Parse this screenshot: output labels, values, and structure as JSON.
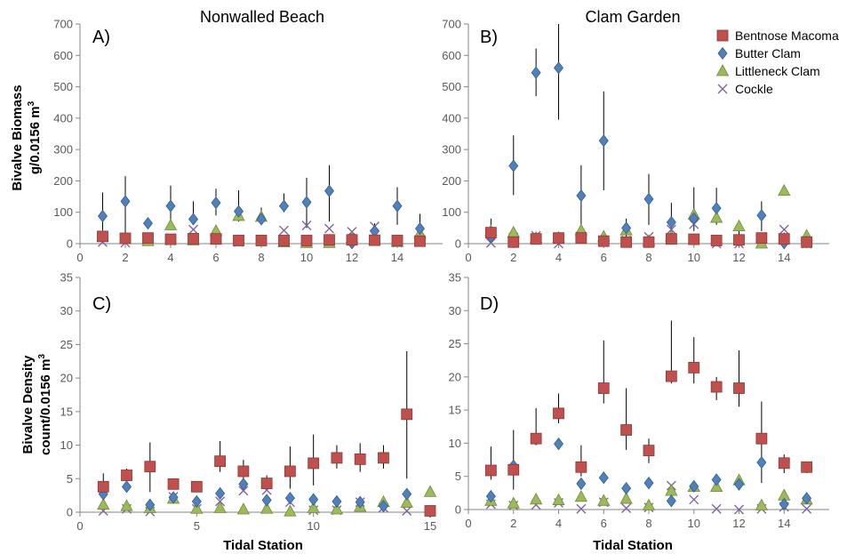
{
  "figure": {
    "xlabel": "Tidal Station",
    "ylabel_top_line1": "Bivalve Biomass",
    "ylabel_top_line2": "g/0.0156 m",
    "ylabel_bottom_line1": "Bivalve Density",
    "ylabel_bottom_line2": "count/0.0156 m",
    "unit_superscript": "3"
  },
  "legend": {
    "placement": "top-right",
    "entries": [
      {
        "name": "Bentnose Macoma",
        "marker": "square",
        "color": "#c0504d"
      },
      {
        "name": "Butter Clam",
        "marker": "diamond",
        "color": "#4f81bd"
      },
      {
        "name": "Littleneck Clam",
        "marker": "triangle",
        "color": "#9bbb59"
      },
      {
        "name": "Cockle",
        "marker": "x",
        "color": "#8064a2"
      }
    ]
  },
  "chart_data": [
    {
      "id": "A",
      "panel_label": "A)",
      "title": "Nonwalled Beach",
      "type": "scatter",
      "error_bars": true,
      "xlim": [
        0,
        16
      ],
      "xticks": [
        0,
        2,
        4,
        6,
        8,
        10,
        12,
        14
      ],
      "ylim": [
        0,
        700
      ],
      "yticks": [
        0,
        100,
        200,
        300,
        400,
        500,
        600,
        700
      ],
      "series": [
        {
          "name": "Bentnose Macoma",
          "x": [
            1,
            2,
            3,
            4,
            5,
            6,
            7,
            8,
            9,
            10,
            11,
            12,
            13,
            14,
            15
          ],
          "y": [
            23,
            17,
            18,
            14,
            16,
            15,
            10,
            10,
            10,
            10,
            12,
            12,
            11,
            10,
            8
          ]
        },
        {
          "name": "Butter Clam",
          "x": [
            1,
            2,
            3,
            4,
            5,
            6,
            7,
            8,
            9,
            10,
            11,
            12,
            13,
            14,
            15
          ],
          "y": [
            88,
            135,
            65,
            120,
            78,
            130,
            103,
            78,
            120,
            132,
            168,
            2,
            40,
            120,
            48
          ],
          "err_low": [
            20,
            30,
            55,
            68,
            60,
            90,
            70,
            60,
            100,
            50,
            70,
            0,
            30,
            60,
            30
          ],
          "err_high": [
            163,
            215,
            75,
            185,
            135,
            175,
            170,
            115,
            160,
            210,
            250,
            10,
            65,
            180,
            95
          ]
        },
        {
          "name": "Littleneck Clam",
          "x": [
            1,
            2,
            3,
            4,
            5,
            6,
            7,
            8,
            9,
            10,
            11,
            12,
            13,
            14,
            15
          ],
          "y": [
            22,
            14,
            8,
            58,
            10,
            40,
            88,
            85,
            4,
            2,
            2,
            18,
            12,
            5,
            32
          ]
        },
        {
          "name": "Cockle",
          "x": [
            1,
            2,
            3,
            4,
            5,
            6,
            7,
            8,
            9,
            10,
            11,
            12,
            13,
            14,
            15
          ],
          "y": [
            5,
            3,
            12,
            10,
            45,
            15,
            5,
            8,
            42,
            58,
            48,
            38,
            55,
            3,
            5
          ]
        }
      ]
    },
    {
      "id": "B",
      "panel_label": "B)",
      "title": "Clam Garden",
      "type": "scatter",
      "error_bars": true,
      "xlim": [
        0,
        16
      ],
      "xticks": [
        0,
        2,
        4,
        6,
        8,
        10,
        12,
        14
      ],
      "ylim": [
        0,
        700
      ],
      "yticks": [
        0,
        100,
        200,
        300,
        400,
        500,
        600,
        700
      ],
      "series": [
        {
          "name": "Bentnose Macoma",
          "x": [
            1,
            2,
            3,
            4,
            5,
            6,
            7,
            8,
            9,
            10,
            11,
            12,
            13,
            14,
            15
          ],
          "y": [
            35,
            5,
            15,
            18,
            18,
            8,
            5,
            5,
            15,
            14,
            10,
            12,
            18,
            15,
            5
          ]
        },
        {
          "name": "Butter Clam",
          "x": [
            1,
            2,
            3,
            4,
            5,
            6,
            7,
            8,
            9,
            10,
            11,
            12,
            13,
            14,
            15
          ],
          "y": [
            22,
            248,
            545,
            560,
            153,
            328,
            50,
            142,
            68,
            80,
            113,
            10,
            90,
            2,
            5
          ],
          "err_low": [
            5,
            155,
            470,
            395,
            60,
            170,
            20,
            60,
            20,
            40,
            60,
            0,
            40,
            0,
            0
          ],
          "err_high": [
            80,
            345,
            622,
            700,
            250,
            485,
            80,
            222,
            130,
            180,
            178,
            40,
            135,
            35,
            20
          ]
        },
        {
          "name": "Littleneck Clam",
          "x": [
            1,
            2,
            3,
            4,
            5,
            6,
            7,
            8,
            9,
            10,
            11,
            12,
            13,
            14,
            15
          ],
          "y": [
            40,
            35,
            18,
            18,
            42,
            22,
            42,
            8,
            22,
            92,
            82,
            55,
            0,
            168,
            25
          ]
        },
        {
          "name": "Cockle",
          "x": [
            1,
            2,
            3,
            4,
            5,
            6,
            7,
            8,
            9,
            10,
            11,
            12,
            13,
            14,
            15
          ],
          "y": [
            2,
            20,
            25,
            0,
            25,
            5,
            10,
            22,
            45,
            62,
            0,
            0,
            15,
            45,
            0
          ]
        }
      ]
    },
    {
      "id": "C",
      "panel_label": "C)",
      "title": "",
      "type": "scatter",
      "error_bars": true,
      "xlim": [
        0,
        15
      ],
      "xticks": [
        0,
        5,
        10,
        15
      ],
      "ylim": [
        0,
        35
      ],
      "yticks": [
        0,
        5,
        10,
        15,
        20,
        25,
        30,
        35
      ],
      "series": [
        {
          "name": "Bentnose Macoma",
          "x": [
            1,
            2,
            3,
            4,
            5,
            6,
            7,
            8,
            9,
            10,
            11,
            12,
            13,
            14,
            15
          ],
          "y": [
            3.8,
            5.5,
            6.8,
            4.2,
            3.8,
            7.6,
            6.1,
            4.3,
            6.1,
            7.3,
            8.1,
            7.9,
            8.1,
            14.6,
            0.2
          ],
          "err_low": [
            3,
            4.5,
            3,
            3.5,
            3,
            6,
            4,
            3.5,
            3.5,
            4,
            6.5,
            6,
            6.5,
            5,
            0
          ],
          "err_high": [
            5.8,
            6.5,
            10.4,
            4.8,
            4.2,
            10.6,
            7.8,
            5.5,
            9.8,
            11.6,
            10,
            10.3,
            10,
            24,
            1
          ]
        },
        {
          "name": "Butter Clam",
          "x": [
            1,
            2,
            3,
            4,
            5,
            6,
            7,
            8,
            9,
            10,
            11,
            12,
            13,
            14,
            15
          ],
          "y": [
            2.7,
            3.8,
            1.1,
            2.2,
            1.6,
            2.8,
            4.2,
            1.8,
            2.1,
            1.9,
            1.6,
            1.5,
            0.9,
            2.7,
            0.1
          ]
        },
        {
          "name": "Littleneck Clam",
          "x": [
            1,
            2,
            3,
            4,
            5,
            6,
            7,
            8,
            9,
            10,
            11,
            12,
            13,
            14,
            15
          ],
          "y": [
            1.1,
            0.9,
            0.6,
            2.0,
            0.5,
            0.6,
            0.4,
            0.5,
            0.1,
            0.6,
            0.4,
            0.8,
            1.5,
            1.4,
            3.0
          ]
        },
        {
          "name": "Cockle",
          "x": [
            1,
            2,
            3,
            4,
            5,
            6,
            7,
            8,
            9,
            10,
            11,
            12,
            13,
            14,
            15
          ],
          "y": [
            0.2,
            0.5,
            0.1,
            2.3,
            0.5,
            1.6,
            3.2,
            3.3,
            1.5,
            0.3,
            0.3,
            1.5,
            0.7,
            0.2,
            0.2
          ]
        }
      ]
    },
    {
      "id": "D",
      "panel_label": "D)",
      "title": "",
      "type": "scatter",
      "error_bars": true,
      "xlim": [
        0,
        16
      ],
      "xticks": [
        0,
        2,
        4,
        6,
        8,
        10,
        12,
        14
      ],
      "ylim": [
        0,
        35
      ],
      "yticks": [
        0,
        5,
        10,
        15,
        20,
        25,
        30,
        35
      ],
      "series": [
        {
          "name": "Bentnose Macoma",
          "x": [
            1,
            2,
            3,
            4,
            5,
            6,
            7,
            8,
            9,
            10,
            11,
            12,
            13,
            14,
            15
          ],
          "y": [
            5.9,
            6.0,
            10.7,
            14.5,
            6.4,
            18.3,
            12.0,
            8.9,
            20.1,
            21.4,
            18.5,
            18.3,
            10.7,
            7.0,
            6.4
          ],
          "err_low": [
            4.5,
            3,
            10,
            13,
            5,
            16,
            9,
            7,
            19,
            19,
            16.5,
            15.5,
            4,
            5.5,
            5.5
          ],
          "err_high": [
            9.5,
            12,
            15.3,
            17.5,
            9.7,
            25.5,
            18.3,
            10.7,
            28.5,
            26,
            20,
            24,
            16.3,
            8.3,
            7.2
          ]
        },
        {
          "name": "Butter Clam",
          "x": [
            1,
            2,
            3,
            4,
            5,
            6,
            7,
            8,
            9,
            10,
            11,
            12,
            13,
            14,
            15
          ],
          "y": [
            2.0,
            6.6,
            10.6,
            9.9,
            3.9,
            4.8,
            3.2,
            4.0,
            1.3,
            3.5,
            4.5,
            3.8,
            7.1,
            0.8,
            1.7
          ]
        },
        {
          "name": "Littleneck Clam",
          "x": [
            1,
            2,
            3,
            4,
            5,
            6,
            7,
            8,
            9,
            10,
            11,
            12,
            13,
            14,
            15
          ],
          "y": [
            1.3,
            0.9,
            1.5,
            1.4,
            1.9,
            1.3,
            1.6,
            0.6,
            2.8,
            3.4,
            3.4,
            4.4,
            0.6,
            2.1,
            1.5
          ]
        },
        {
          "name": "Cockle",
          "x": [
            1,
            2,
            3,
            4,
            5,
            6,
            7,
            8,
            9,
            10,
            11,
            12,
            13,
            14,
            15
          ],
          "y": [
            0.8,
            0.6,
            0.7,
            1.0,
            0.1,
            1.1,
            0.2,
            0.3,
            3.6,
            1.5,
            0.1,
            0.0,
            0.1,
            0.4,
            0.1
          ]
        }
      ]
    }
  ]
}
